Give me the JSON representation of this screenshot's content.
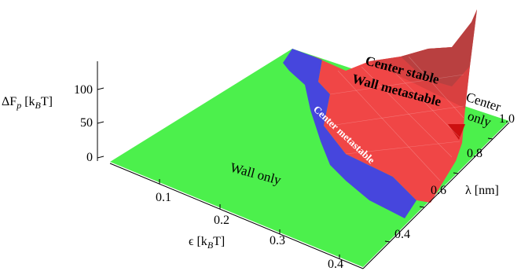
{
  "chart_data": {
    "type": "surface3d",
    "title": "",
    "x_axis": {
      "label_main": "ϵ [k",
      "label_sub": "B",
      "label_end": "T]",
      "ticks": [
        "0.1",
        "0.2",
        "0.3",
        "0.4"
      ]
    },
    "y_axis": {
      "label_main": "λ [nm]",
      "ticks": [
        "0.4",
        "0.6",
        "0.8",
        "1.0"
      ]
    },
    "z_axis": {
      "label_main": "ΔF",
      "label_p": "p",
      "label_mid": " [k",
      "label_sub": "B",
      "label_end": "T]",
      "ticks": [
        "0",
        "50",
        "100"
      ]
    },
    "regions": [
      {
        "name": "Wall only",
        "color": "#4cf04c"
      },
      {
        "name": "Center metastable",
        "color": "#4848e0"
      },
      {
        "name": "Center stable",
        "color": "#f04848"
      },
      {
        "name": "Wall metastable",
        "color": "#f04848"
      },
      {
        "name": "Center",
        "color": "#4cf04c"
      },
      {
        "name": "only",
        "color": "#4cf04c"
      }
    ],
    "peak_value_approx": 130
  }
}
